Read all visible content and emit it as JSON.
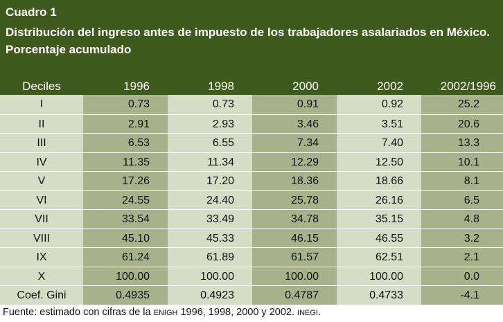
{
  "title": "Cuadro 1",
  "subtitle": "Distribución del ingreso antes de impuesto de los trabajadores asalariados en México. Porcentaje acumulado",
  "columns": [
    "Deciles",
    "1996",
    "1998",
    "2000",
    "2002",
    "2002/1996"
  ],
  "rows": [
    [
      "I",
      "0.73",
      "0.73",
      "0.91",
      "0.92",
      "25.2"
    ],
    [
      "II",
      "2.91",
      "2.93",
      "3.46",
      "3.51",
      "20.6"
    ],
    [
      "III",
      "6.53",
      "6.55",
      "7.34",
      "7.40",
      "13.3"
    ],
    [
      "IV",
      "11.35",
      "11.34",
      "12.29",
      "12.50",
      "10.1"
    ],
    [
      "V",
      "17.26",
      "17.20",
      "18.36",
      "18.66",
      "8.1"
    ],
    [
      "VI",
      "24.55",
      "24.40",
      "25.78",
      "26.16",
      "6.5"
    ],
    [
      "VII",
      "33.54",
      "33.49",
      "34.78",
      "35.15",
      "4.8"
    ],
    [
      "VIII",
      "45.10",
      "45.33",
      "46.15",
      "46.55",
      "3.2"
    ],
    [
      "IX",
      "61.24",
      "61.89",
      "61.57",
      "62.51",
      "2.1"
    ],
    [
      "X",
      "100.00",
      "100.00",
      "100.00",
      "100.00",
      "0.0"
    ],
    [
      "Coef. Gini",
      "0.4935",
      "0.4923",
      "0.4787",
      "0.4733",
      "-4.1"
    ]
  ],
  "footnote": {
    "prefix": "Fuente: estimado con cifras de la ",
    "enigh": "ENIGH",
    "middle": " 1996, 1998, 2000 y 2002. ",
    "inegi": "INEGI",
    "suffix": "."
  },
  "colors": {
    "header_bg": "#3e5a1c",
    "cell_light": "#d7dcc6",
    "cell_dark": "#a7b28b"
  }
}
